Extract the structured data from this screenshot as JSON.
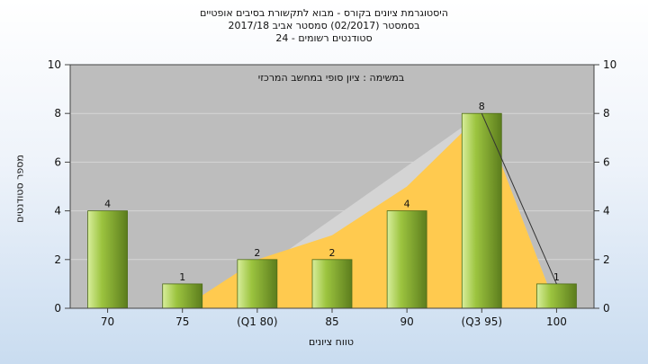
{
  "chart_data": {
    "type": "bar",
    "title_lines": [
      "היסטוגרמת ציונים בקורס - מבוא לתקשורת בסיבים אופטיים",
      "בסמסטר  (02/2017)  סמסטר אביב 2017/18",
      "סטודנטים רשומים - 24"
    ],
    "annotation": "במשימה : ציון סופי במחשב המרכזי",
    "xlabel": "טווח ציונים",
    "ylabel": "מספר סטודנטים",
    "categories": [
      "70",
      "75",
      "(Q1 80)",
      "85",
      "90",
      "(Q3 95)",
      "100"
    ],
    "values": [
      4,
      1,
      2,
      2,
      4,
      8,
      1
    ],
    "cumulative_area": [
      0,
      0,
      2,
      3,
      5,
      8,
      0
    ],
    "ylim": [
      0,
      10
    ],
    "yticks": [
      "0",
      "2",
      "4",
      "6",
      "8",
      "10"
    ],
    "grid": true,
    "colors": {
      "plot_background": "#bdbdbd",
      "bar_light": "#d8ee9c",
      "bar_mid": "#9cc43f",
      "bar_dark": "#5c7d1d",
      "area": "#ffca4f",
      "secondary_area": "#d4d4d4"
    }
  }
}
